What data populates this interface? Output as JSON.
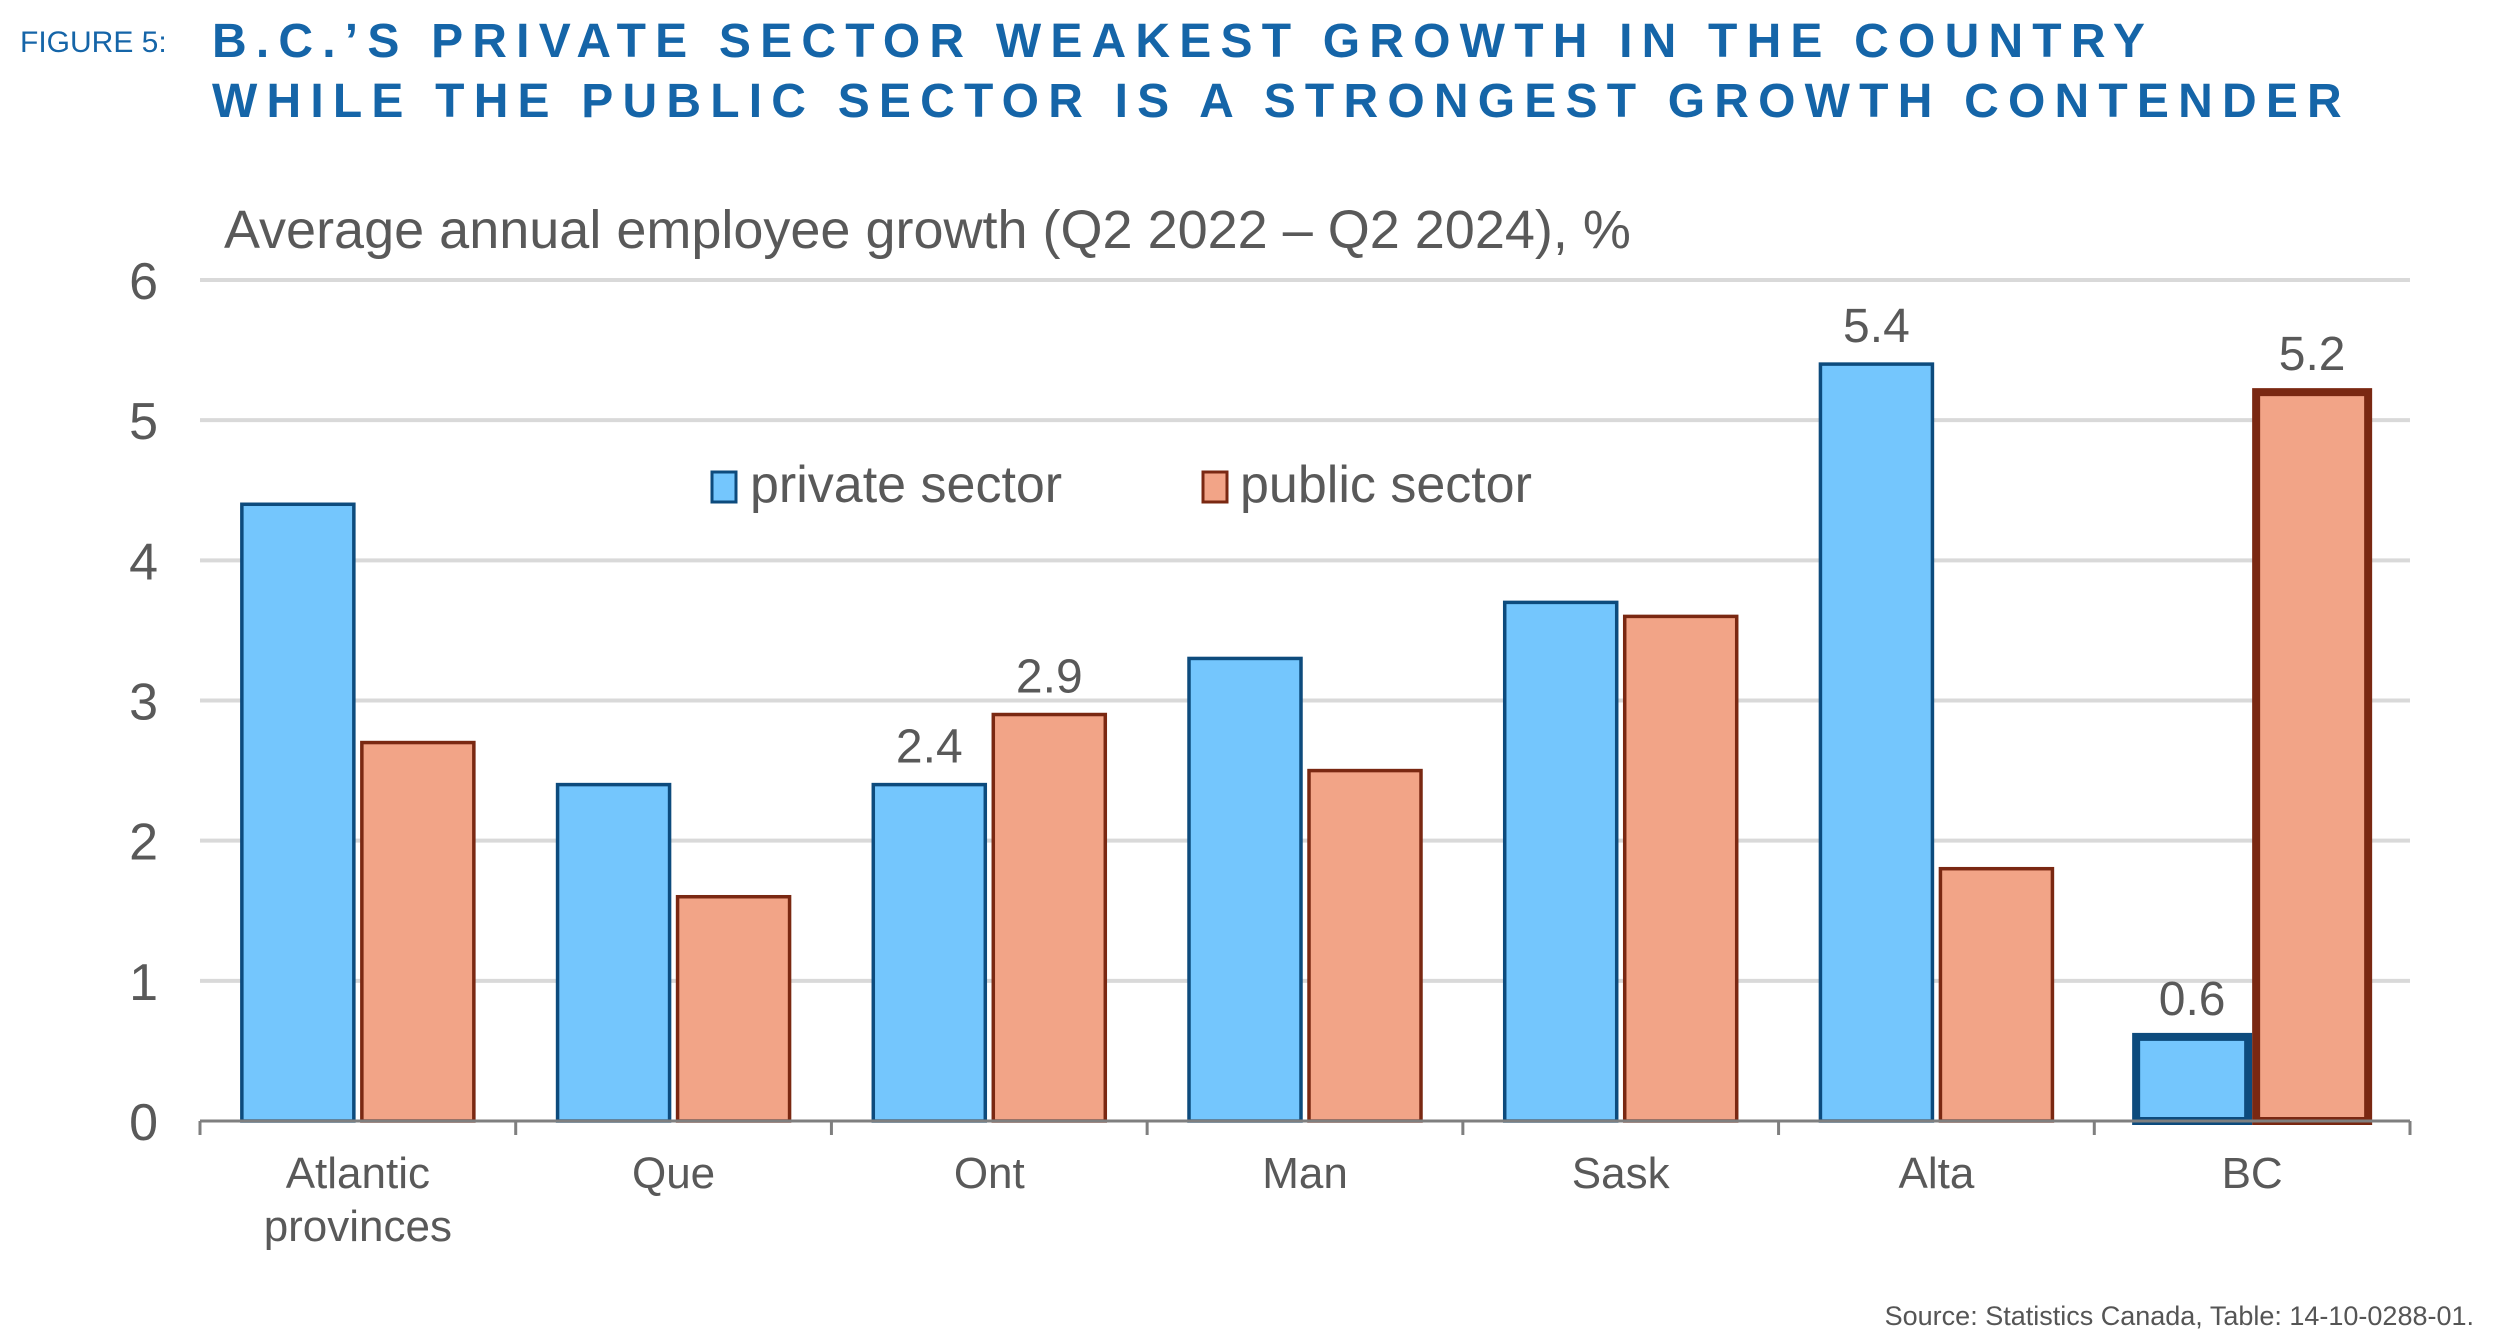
{
  "header": {
    "figure_label": "FIGURE 5:",
    "title_line_1": "B.C.’S PRIVATE SECTOR WEAKEST GROWTH IN THE COUNTRY",
    "title_line_2": "WHILE THE PUBLIC SECTOR IS A STRONGEST GROWTH CONTENDER"
  },
  "source": "Source: Statistics Canada, Table: 14-10-0288-01.",
  "colors": {
    "title": "#1565a8",
    "private_fill": "#74c6fd",
    "private_stroke": "#0d4b7d",
    "public_fill": "#f2a487",
    "public_stroke": "#7a2812",
    "text": "#595959",
    "grid": "#d9d9d9",
    "axis": "#7f7f7f"
  },
  "chart_data": {
    "type": "bar",
    "title": "Average annual employee growth (Q2 2022 – Q2 2024), %",
    "xlabel": "",
    "ylabel": "",
    "ylim": [
      0,
      6
    ],
    "yticks": [
      0,
      1,
      2,
      3,
      4,
      5,
      6
    ],
    "grid": true,
    "legend_position": "top-center",
    "categories": [
      [
        "Atlantic",
        "provinces"
      ],
      [
        "Que"
      ],
      [
        "Ont"
      ],
      [
        "Man"
      ],
      [
        "Sask"
      ],
      [
        "Alta"
      ],
      [
        "BC"
      ]
    ],
    "series": [
      {
        "name": "private sector",
        "values": [
          4.4,
          2.4,
          2.4,
          3.3,
          3.7,
          5.4,
          0.6
        ],
        "labels": [
          null,
          null,
          "2.4",
          null,
          null,
          "5.4",
          "0.6"
        ],
        "emphasis": [
          false,
          false,
          false,
          false,
          false,
          false,
          true
        ]
      },
      {
        "name": "public sector",
        "values": [
          2.7,
          1.6,
          2.9,
          2.5,
          3.6,
          1.8,
          5.2
        ],
        "labels": [
          null,
          null,
          "2.9",
          null,
          null,
          null,
          "5.2"
        ],
        "emphasis": [
          false,
          false,
          false,
          false,
          false,
          false,
          true
        ]
      }
    ]
  }
}
